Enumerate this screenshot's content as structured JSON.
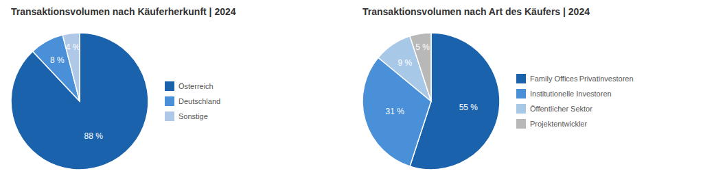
{
  "chart_data": [
    {
      "type": "pie",
      "title": "Transaktionsvolumen nach Käuferherkunft | 2024",
      "categories": [
        "Österreich",
        "Deutschland",
        "Sonstige"
      ],
      "values": [
        88,
        8,
        4
      ],
      "value_labels": [
        "88 %",
        "8 %",
        "4 %"
      ],
      "colors": [
        "#1b62ad",
        "#4a90d9",
        "#b0c8e8"
      ],
      "data_labels": true,
      "legend": "right"
    },
    {
      "type": "pie",
      "title": "Transaktionsvolumen nach Art des Käufers | 2024",
      "categories": [
        "Family Offices Privatinvestoren",
        "Institutionelle Investoren",
        "Öffentlicher Sektor",
        "Projektentwickler"
      ],
      "values": [
        55,
        31,
        9,
        5
      ],
      "value_labels": [
        "55 %",
        "31 %",
        "9 %",
        "5 %"
      ],
      "colors": [
        "#1b62ad",
        "#4a90d9",
        "#a8c8e8",
        "#b8b8b8"
      ],
      "data_labels": true,
      "legend": "right"
    }
  ]
}
